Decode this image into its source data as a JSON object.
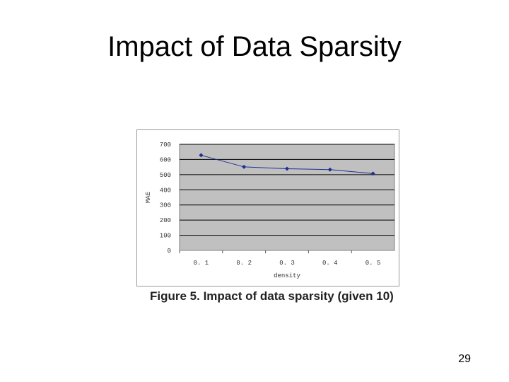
{
  "slide": {
    "title": "Impact of Data Sparsity",
    "page_number": "29"
  },
  "figure": {
    "caption": "Figure 5. Impact of data sparsity (given 10)"
  },
  "colors": {
    "plot_background": "#c0c0c0",
    "series_line": "#1f2f8f",
    "gridline": "#000000"
  },
  "chart_data": {
    "type": "line",
    "categories": [
      "0. 1",
      "0. 2",
      "0. 3",
      "0. 4",
      "0. 5"
    ],
    "x": [
      0.1,
      0.2,
      0.3,
      0.4,
      0.5
    ],
    "series": [
      {
        "values": [
          628,
          551,
          539,
          533,
          507
        ]
      }
    ],
    "y_ticks": [
      "0",
      "100",
      "200",
      "300",
      "400",
      "500",
      "600",
      "700"
    ],
    "xlabel": "density",
    "ylabel": "MAE",
    "ylim": [
      0,
      700
    ],
    "grid": true,
    "legend": "none"
  }
}
